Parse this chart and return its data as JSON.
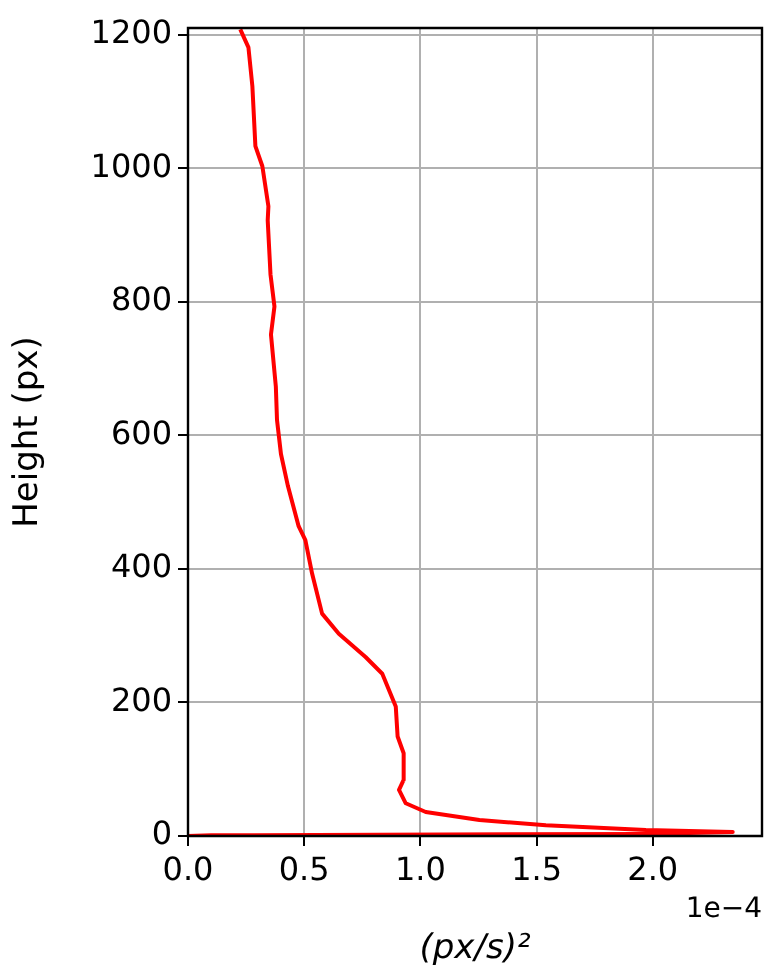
{
  "chart_data": {
    "type": "line",
    "xlabel": "(px/s)²",
    "ylabel": "Height (px)",
    "annotations": [
      "1e−4"
    ],
    "xlim": [
      0,
      2.47
    ],
    "ylim": [
      0,
      1210
    ],
    "xticks": [
      {
        "value": 0,
        "label": "0.0"
      },
      {
        "value": 0.5,
        "label": "0.5"
      },
      {
        "value": 1,
        "label": "1.0"
      },
      {
        "value": 1.5,
        "label": "1.5"
      },
      {
        "value": 2,
        "label": "2.0"
      }
    ],
    "yticks": [
      0,
      200,
      400,
      600,
      800,
      1000,
      1200
    ],
    "grid": true,
    "marker": "none",
    "line_style": "solid",
    "series": [
      {
        "color": "#ff0000",
        "x": [
          0.225,
          0.26,
          0.277,
          0.29,
          0.32,
          0.346,
          0.343,
          0.355,
          0.372,
          0.357,
          0.378,
          0.383,
          0.4,
          0.43,
          0.476,
          0.505,
          0.534,
          0.577,
          0.649,
          0.764,
          0.836,
          0.894,
          0.902,
          0.928,
          0.928,
          0.908,
          0.937,
          1.023,
          1.254,
          1.54,
          1.97,
          2.344,
          1.97,
          0.82,
          0.1,
          0
        ],
        "values": [
          1208,
          1181,
          1123,
          1033,
          1003,
          943,
          922,
          841,
          793,
          751,
          673,
          623,
          572,
          524,
          464,
          443,
          393,
          333,
          303,
          268,
          243,
          194,
          149,
          124,
          84,
          69,
          49,
          36,
          24,
          16,
          9,
          6,
          3,
          2,
          1,
          0
        ]
      }
    ]
  }
}
